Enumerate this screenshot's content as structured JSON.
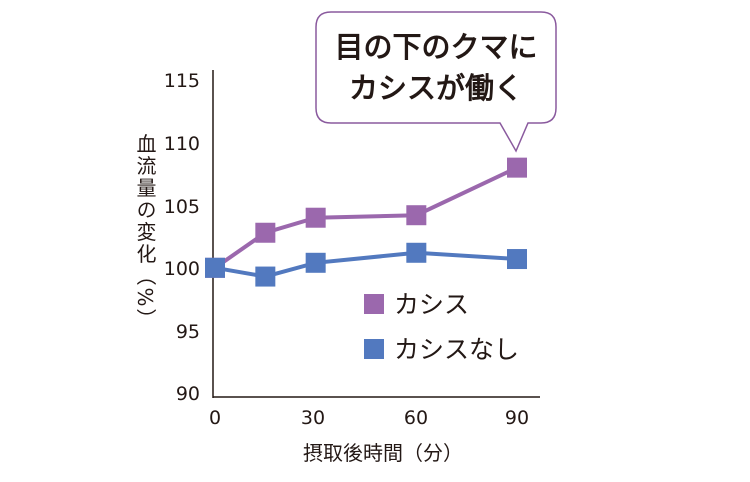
{
  "chart_data": {
    "type": "line",
    "x": [
      0,
      15,
      30,
      60,
      90
    ],
    "xticks": [
      "0",
      "30",
      "60",
      "90"
    ],
    "xlabel": "摂取後時間（分）",
    "ylabel": "血流量の変化（%）",
    "yticks": [
      "115",
      "110",
      "105",
      "100",
      "95",
      "90"
    ],
    "ylim": [
      90,
      115
    ],
    "series": [
      {
        "name": "カシス",
        "values": [
          100,
          102.8,
          104.0,
          104.2,
          108.0
        ],
        "color": "#9b68ad"
      },
      {
        "name": "カシスなし",
        "values": [
          100,
          99.3,
          100.4,
          101.2,
          100.7
        ],
        "color": "#5279bf"
      }
    ],
    "annotation": {
      "lines": [
        "目の下のクマに",
        "カシスが働く"
      ]
    }
  },
  "colors": {
    "axis": "#231815",
    "callout_border": "#8a5a9e"
  }
}
